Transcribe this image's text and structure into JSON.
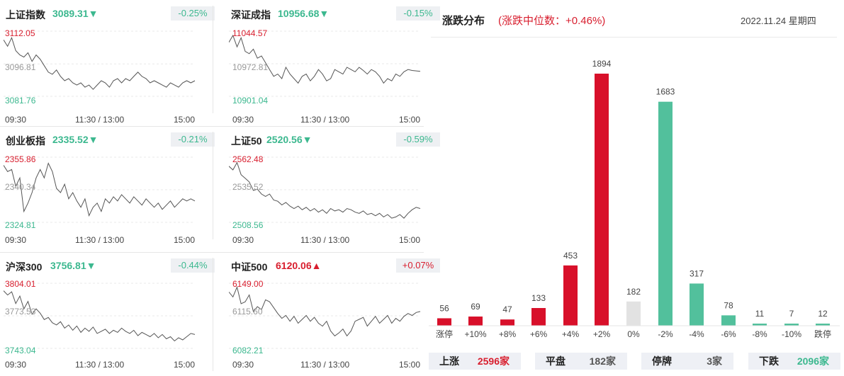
{
  "panels": [
    {
      "name": "上证指数",
      "value": "3089.31",
      "arrow": "▼",
      "trend": "down",
      "change": "-0.25%",
      "high": "3112.05",
      "mid": "3096.81",
      "low": "3081.76",
      "series": [
        3108,
        3105,
        3109,
        3103,
        3101,
        3100,
        3102,
        3098,
        3101,
        3099,
        3096,
        3093,
        3092,
        3094,
        3091,
        3089,
        3090,
        3088,
        3087,
        3088,
        3086,
        3087,
        3085,
        3087,
        3089,
        3088,
        3086,
        3089,
        3090,
        3088,
        3090,
        3089,
        3091,
        3093,
        3091,
        3090,
        3088,
        3089,
        3088,
        3087,
        3086,
        3088,
        3087,
        3086,
        3088,
        3089,
        3088,
        3089
      ]
    },
    {
      "name": "深证成指",
      "value": "10956.68",
      "arrow": "▼",
      "trend": "down",
      "change": "-0.15%",
      "high": "11044.57",
      "mid": "10972.81",
      "low": "10901.04",
      "series": [
        11020,
        11035,
        11010,
        11030,
        11000,
        10995,
        11005,
        10985,
        10990,
        10975,
        10960,
        10945,
        10950,
        10940,
        10965,
        10950,
        10940,
        10930,
        10945,
        10950,
        10935,
        10945,
        10960,
        10950,
        10935,
        10940,
        10960,
        10955,
        10950,
        10965,
        10960,
        10955,
        10965,
        10958,
        10950,
        10960,
        10955,
        10945,
        10930,
        10940,
        10935,
        10950,
        10945,
        10955,
        10960,
        10958,
        10957,
        10956
      ]
    },
    {
      "name": "创业板指",
      "value": "2335.52",
      "arrow": "▼",
      "trend": "down",
      "change": "-0.21%",
      "high": "2355.86",
      "mid": "2340.34",
      "low": "2324.81",
      "series": [
        2352,
        2349,
        2350,
        2342,
        2346,
        2330,
        2334,
        2339,
        2346,
        2350,
        2346,
        2353,
        2349,
        2341,
        2339,
        2343,
        2336,
        2339,
        2335,
        2332,
        2336,
        2328,
        2332,
        2334,
        2330,
        2336,
        2334,
        2337,
        2335,
        2338,
        2336,
        2334,
        2337,
        2335,
        2333,
        2336,
        2334,
        2332,
        2334,
        2331,
        2333,
        2335,
        2332,
        2334,
        2336,
        2335,
        2336,
        2335
      ]
    },
    {
      "name": "上证50",
      "value": "2520.56",
      "arrow": "▼",
      "trend": "down",
      "change": "-0.59%",
      "high": "2562.48",
      "mid": "2535.52",
      "low": "2508.56",
      "series": [
        2555,
        2552,
        2558,
        2548,
        2545,
        2542,
        2535,
        2536,
        2532,
        2530,
        2532,
        2527,
        2526,
        2523,
        2525,
        2522,
        2520,
        2522,
        2519,
        2521,
        2518,
        2520,
        2517,
        2519,
        2516,
        2520,
        2518,
        2519,
        2517,
        2520,
        2519,
        2517,
        2516,
        2518,
        2515,
        2516,
        2514,
        2516,
        2513,
        2515,
        2512,
        2513,
        2515,
        2512,
        2516,
        2519,
        2521,
        2520
      ]
    },
    {
      "name": "沪深300",
      "value": "3756.81",
      "arrow": "▼",
      "trend": "down",
      "change": "-0.44%",
      "high": "3804.01",
      "mid": "3773.53",
      "low": "3743.04",
      "series": [
        3797,
        3793,
        3796,
        3785,
        3792,
        3780,
        3787,
        3775,
        3780,
        3776,
        3770,
        3772,
        3767,
        3765,
        3768,
        3762,
        3765,
        3760,
        3764,
        3758,
        3762,
        3759,
        3763,
        3757,
        3759,
        3761,
        3757,
        3760,
        3758,
        3762,
        3759,
        3757,
        3760,
        3755,
        3758,
        3756,
        3754,
        3757,
        3753,
        3756,
        3752,
        3754,
        3750,
        3753,
        3751,
        3754,
        3757,
        3756
      ]
    },
    {
      "name": "中证500",
      "value": "6120.06",
      "arrow": "▲",
      "trend": "up",
      "change": "+0.07%",
      "high": "6149.00",
      "mid": "6115.60",
      "low": "6082.21",
      "series": [
        6140,
        6135,
        6145,
        6128,
        6130,
        6137,
        6120,
        6125,
        6122,
        6132,
        6130,
        6124,
        6118,
        6113,
        6116,
        6110,
        6115,
        6108,
        6112,
        6116,
        6110,
        6114,
        6108,
        6105,
        6110,
        6100,
        6095,
        6098,
        6102,
        6095,
        6100,
        6110,
        6112,
        6114,
        6105,
        6110,
        6115,
        6108,
        6112,
        6116,
        6108,
        6113,
        6110,
        6115,
        6118,
        6116,
        6119,
        6120
      ]
    }
  ],
  "time_labels": {
    "start": "09:30",
    "middle": "11:30 / 13:00",
    "end": "15:00"
  },
  "distribution": {
    "title": "涨跌分布",
    "subtitle": "(涨跌中位数：+0.46%)",
    "date": "2022.11.24 星期四",
    "colors": {
      "up": "#d8102a",
      "flat": "#e2e2e2",
      "down": "#52c09c"
    }
  },
  "chart_data": {
    "type": "bar",
    "categories": [
      "涨停",
      "+10%",
      "+8%",
      "+6%",
      "+4%",
      "+2%",
      "0%",
      "-2%",
      "-4%",
      "-6%",
      "-8%",
      "-10%",
      "跌停"
    ],
    "values": [
      56,
      69,
      47,
      133,
      453,
      1894,
      182,
      1683,
      317,
      78,
      11,
      7,
      12
    ],
    "groups": [
      "up",
      "up",
      "up",
      "up",
      "up",
      "up",
      "flat",
      "down",
      "down",
      "down",
      "down",
      "down",
      "down"
    ],
    "ylim": [
      0,
      1894
    ]
  },
  "summary": [
    {
      "label": "上涨",
      "value": "2596家",
      "tone": "up"
    },
    {
      "label": "平盘",
      "value": "182家",
      "tone": "neutral"
    },
    {
      "label": "停牌",
      "value": "3家",
      "tone": "neutral"
    },
    {
      "label": "下跌",
      "value": "2096家",
      "tone": "down"
    }
  ]
}
